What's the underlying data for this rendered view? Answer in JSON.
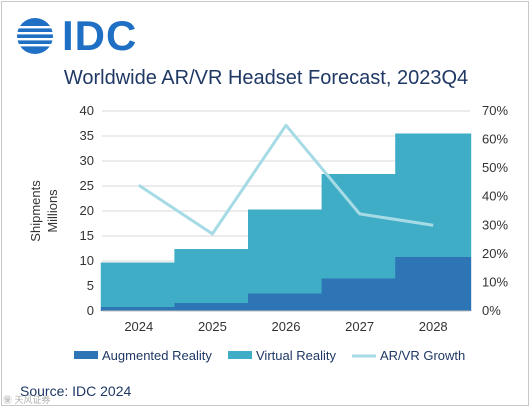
{
  "brand": {
    "logo_text": "IDC",
    "logo_icon": "globe-icon"
  },
  "watermark": "㊝ 天风证券",
  "source": "Source: IDC 2024",
  "colors": {
    "ar": "#2e75b6",
    "vr": "#3fadc6",
    "growth": "#a6dbe6",
    "grid": "#d9d9d9",
    "title": "#1f3864"
  },
  "chart_data": {
    "type": "bar",
    "stacked": true,
    "title": "Worldwide AR/VR Headset Forecast, 2023Q4",
    "ylabel": "Shipments Millions",
    "categories": [
      "2024",
      "2025",
      "2026",
      "2027",
      "2028"
    ],
    "ylim": [
      0,
      40
    ],
    "yticks": [
      "0",
      "5",
      "10",
      "15",
      "20",
      "25",
      "30",
      "35",
      "40"
    ],
    "y2lim": [
      0,
      0.7
    ],
    "y2ticks": [
      "0%",
      "10%",
      "20%",
      "30%",
      "40%",
      "50%",
      "60%",
      "70%"
    ],
    "grid": true,
    "legend_position": "bottom",
    "series": [
      {
        "name": "Augmented Reality",
        "type": "bar",
        "values": [
          0.8,
          1.6,
          3.5,
          6.5,
          10.8
        ]
      },
      {
        "name": "Virtual Reality",
        "type": "bar",
        "values": [
          8.9,
          10.8,
          16.8,
          20.9,
          24.7
        ]
      },
      {
        "name": "AR/VR Growth",
        "type": "line",
        "axis": "secondary",
        "values": [
          0.44,
          0.27,
          0.65,
          0.34,
          0.3
        ]
      }
    ]
  }
}
